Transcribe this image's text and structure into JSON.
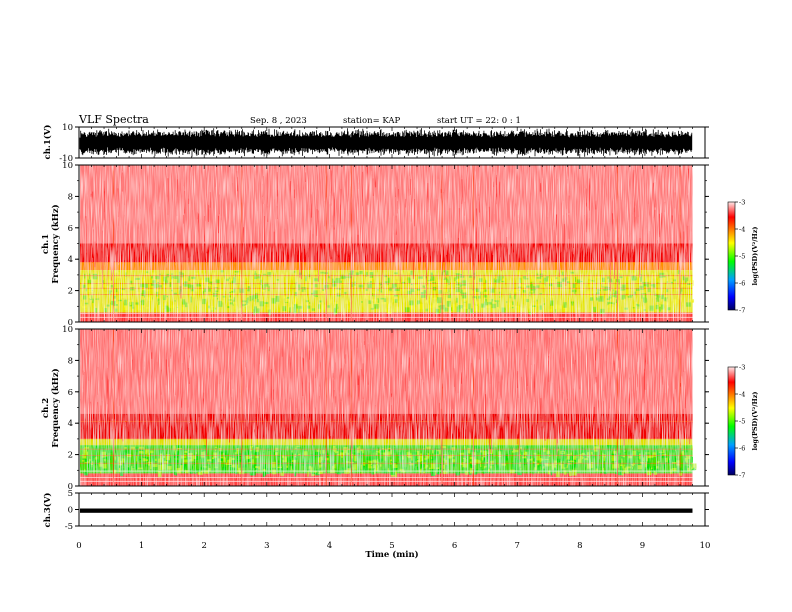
{
  "header": {
    "title": "VLF Spectra",
    "date": "Sep. 8  , 2023",
    "station": "station= KAP",
    "start": "start  UT =   22: 0  : 1"
  },
  "chart_data": [
    {
      "id": "ch1-waveform",
      "type": "line",
      "ylabel": "ch.1(V)",
      "ylim": [
        -10,
        10
      ],
      "yticks": [
        "10",
        "-10"
      ],
      "xlim": [
        0,
        10
      ],
      "data_end_min": 9.8,
      "amplitude_note": "dense broadband signal saturating most of the range"
    },
    {
      "id": "ch1-spectrogram",
      "type": "heatmap",
      "ylabel": "ch.1\nFrequency  (kHz)",
      "ylim": [
        0,
        10
      ],
      "yticks": [
        "0",
        "2",
        "4",
        "6",
        "8",
        "10"
      ],
      "xlim": [
        0,
        10
      ],
      "bands": [
        {
          "from": 0,
          "to": 0.6,
          "level": "mixed"
        },
        {
          "from": 0.6,
          "to": 3.8,
          "level": "-4.5 to -5"
        },
        {
          "from": 3.8,
          "to": 5,
          "level": "-4"
        },
        {
          "from": 5,
          "to": 10,
          "level": "-3 to -3.5"
        }
      ]
    },
    {
      "id": "ch2-spectrogram",
      "type": "heatmap",
      "ylabel": "ch.2\nFrequency  (kHz)",
      "ylim": [
        0,
        10
      ],
      "yticks": [
        "0",
        "2",
        "4",
        "6",
        "8",
        "10"
      ],
      "xlim": [
        0,
        10
      ],
      "bands": [
        {
          "from": 0,
          "to": 0.6,
          "level": "mixed"
        },
        {
          "from": 0.6,
          "to": 3.0,
          "level": "-5"
        },
        {
          "from": 3.0,
          "to": 4.6,
          "level": "-4"
        },
        {
          "from": 4.6,
          "to": 10,
          "level": "-3 to -3.5"
        }
      ]
    },
    {
      "id": "ch3-waveform",
      "type": "line",
      "ylabel": "ch.3(V)",
      "ylim": [
        -5,
        5
      ],
      "yticks": [
        "5",
        "0",
        "-5"
      ],
      "xlim": [
        0,
        10
      ],
      "xticks": [
        "0",
        "1",
        "2",
        "3",
        "4",
        "5",
        "6",
        "7",
        "8",
        "9",
        "10"
      ],
      "xlabel": "Time  (min)",
      "amplitude_range": [
        -1,
        0.3
      ]
    }
  ],
  "colorbar": {
    "label": "log(PSD)(V²/Hz)",
    "range": [
      -7,
      -3
    ],
    "ticks": [
      "-3",
      "-4",
      "-5",
      "-6",
      "-7"
    ],
    "colors": [
      "#000000",
      "#0000ff",
      "#00b0ff",
      "#00ff00",
      "#ffff00",
      "#ff8000",
      "#ff0000",
      "#ffe0e0"
    ]
  }
}
